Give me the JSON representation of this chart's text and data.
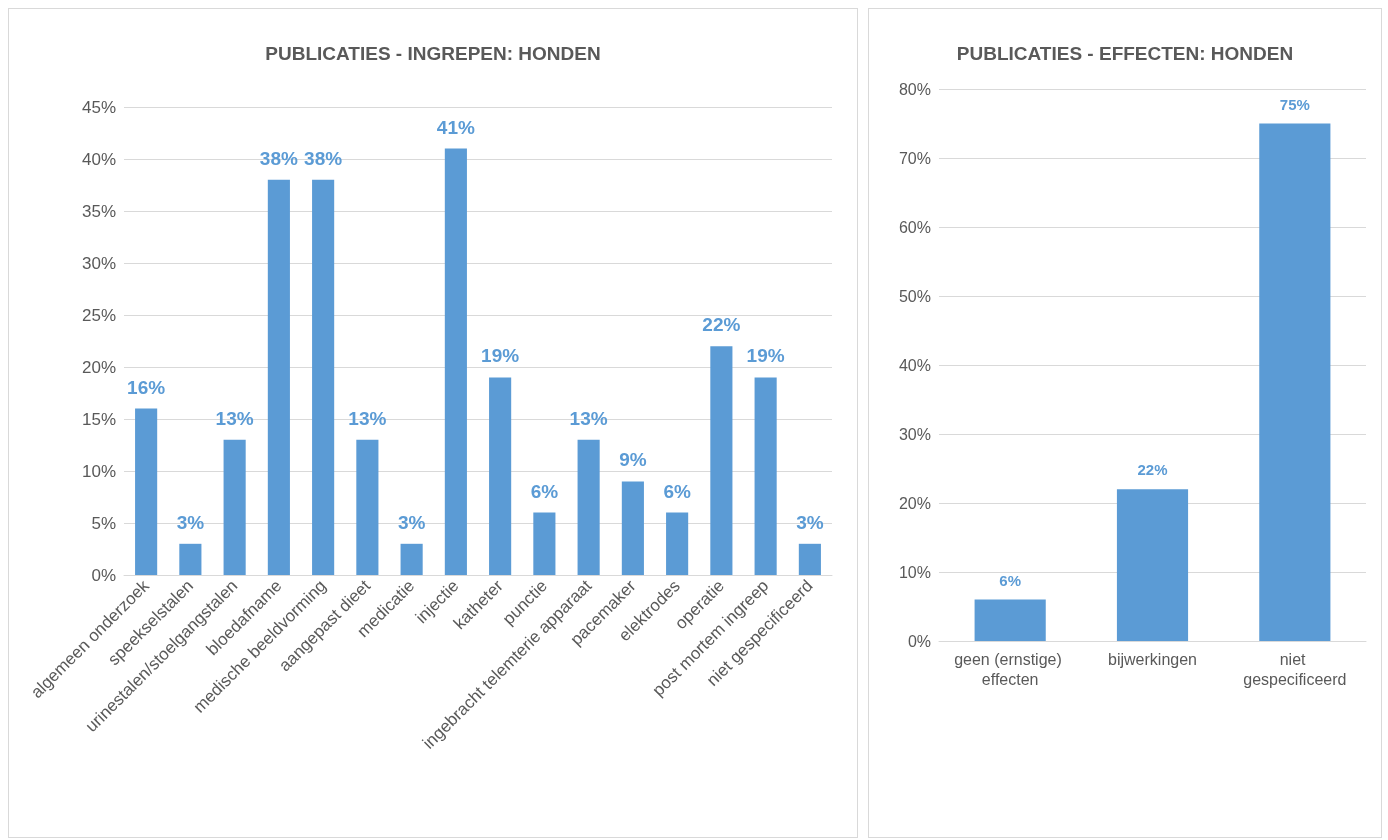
{
  "chart_data": [
    {
      "type": "bar",
      "title": "PUBLICATIES - INGREPEN: HONDEN",
      "categories": [
        "algemeen onderzoek",
        "speekselstalen",
        "urinestalen/stoelgangstalen",
        "bloedafname",
        "medische beeldvorming",
        "aangepast dieet",
        "medicatie",
        "injectie",
        "katheter",
        "punctie",
        "ingebracht telemterie apparaat",
        "pacemaker",
        "elektrodes",
        "operatie",
        "post mortem ingreep",
        "niet gespecificeerd"
      ],
      "values": [
        16,
        3,
        13,
        38,
        38,
        13,
        3,
        41,
        19,
        6,
        13,
        9,
        6,
        22,
        19,
        3
      ],
      "value_labels": [
        "16%",
        "3%",
        "13%",
        "38%",
        "38%",
        "13%",
        "3%",
        "41%",
        "19%",
        "6%",
        "13%",
        "9%",
        "6%",
        "22%",
        "19%",
        "3%"
      ],
      "color": "#5b9bd5",
      "ylim": [
        0,
        45
      ],
      "yticks": [
        {
          "value": 0,
          "label": "0%"
        },
        {
          "value": 5,
          "label": "5%"
        },
        {
          "value": 10,
          "label": "10%"
        },
        {
          "value": 15,
          "label": "15%"
        },
        {
          "value": 20,
          "label": "20%"
        },
        {
          "value": 25,
          "label": "25%"
        },
        {
          "value": 30,
          "label": "30%"
        },
        {
          "value": 35,
          "label": "35%"
        },
        {
          "value": 40,
          "label": "40%"
        },
        {
          "value": 45,
          "label": "45%"
        }
      ],
      "grid": "y"
    },
    {
      "type": "bar",
      "title": "PUBLICATIES - EFFECTEN: HONDEN",
      "categories": [
        "geen (ernstige) effecten",
        "bijwerkingen",
        "niet gespecificeerd"
      ],
      "values": [
        6,
        22,
        75
      ],
      "value_labels": [
        "6%",
        "22%",
        "75%"
      ],
      "color": "#5b9bd5",
      "ylim": [
        0,
        80
      ],
      "yticks": [
        {
          "value": 0,
          "label": "0%"
        },
        {
          "value": 10,
          "label": "10%"
        },
        {
          "value": 20,
          "label": "20%"
        },
        {
          "value": 30,
          "label": "30%"
        },
        {
          "value": 40,
          "label": "40%"
        },
        {
          "value": 50,
          "label": "50%"
        },
        {
          "value": 60,
          "label": "60%"
        },
        {
          "value": 70,
          "label": "70%"
        },
        {
          "value": 80,
          "label": "80%"
        }
      ],
      "grid": "y"
    }
  ]
}
